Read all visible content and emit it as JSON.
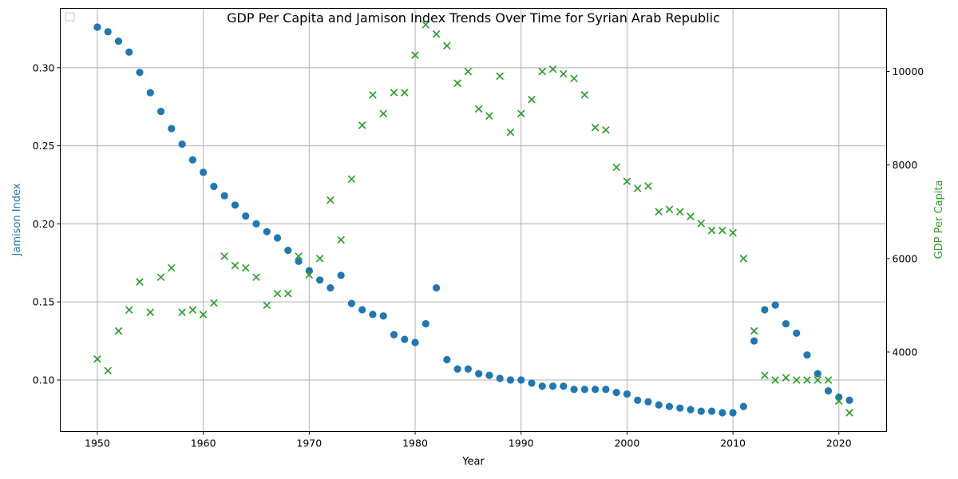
{
  "chart_data": {
    "type": "scatter",
    "title": "GDP Per Capita and Jamison Index Trends Over Time for Syrian Arab Republic",
    "xlabel": "Year",
    "ylabel_left": "Jamison Index",
    "ylabel_right": "GDP Per Capita",
    "xlim": [
      1946.5,
      2024.5
    ],
    "ylim_left": [
      0.067,
      0.338
    ],
    "ylim_right": [
      2300,
      11350
    ],
    "x_ticks": [
      1950,
      1960,
      1970,
      1980,
      1990,
      2000,
      2010,
      2020
    ],
    "y_ticks_left": [
      0.1,
      0.15,
      0.2,
      0.25,
      0.3
    ],
    "y_ticks_left_labels": [
      "0.10",
      "0.15",
      "0.20",
      "0.25",
      "0.30"
    ],
    "y_ticks_right": [
      4000,
      6000,
      8000,
      10000
    ],
    "y_ticks_right_labels": [
      "4000",
      "6000",
      "8000",
      "10000"
    ],
    "grid": true,
    "legend": "top-left",
    "colors": {
      "jamison": "#1f77b4",
      "gdp": "#2ca02c"
    },
    "series": [
      {
        "axis": "left",
        "marker": "circle",
        "x": [
          1950,
          1951,
          1952,
          1953,
          1954,
          1955,
          1956,
          1957,
          1958,
          1959,
          1960,
          1961,
          1962,
          1963,
          1964,
          1965,
          1966,
          1967,
          1968,
          1969,
          1970,
          1971,
          1972,
          1973,
          1974,
          1975,
          1976,
          1977,
          1978,
          1979,
          1980,
          1981,
          1982,
          1983,
          1984,
          1985,
          1986,
          1987,
          1988,
          1989,
          1990,
          1991,
          1992,
          1993,
          1994,
          1995,
          1996,
          1997,
          1998,
          1999,
          2000,
          2001,
          2002,
          2003,
          2004,
          2005,
          2006,
          2007,
          2008,
          2009,
          2010,
          2011,
          2012,
          2013,
          2014,
          2015,
          2016,
          2017,
          2018,
          2019,
          2020,
          2021
        ],
        "y": [
          0.326,
          0.323,
          0.317,
          0.31,
          0.297,
          0.284,
          0.272,
          0.261,
          0.251,
          0.241,
          0.233,
          0.224,
          0.218,
          0.212,
          0.205,
          0.2,
          0.195,
          0.191,
          0.183,
          0.176,
          0.17,
          0.164,
          0.159,
          0.167,
          0.149,
          0.145,
          0.142,
          0.141,
          0.129,
          0.126,
          0.124,
          0.136,
          0.159,
          0.113,
          0.107,
          0.107,
          0.104,
          0.103,
          0.101,
          0.1,
          0.1,
          0.098,
          0.096,
          0.096,
          0.096,
          0.094,
          0.094,
          0.094,
          0.094,
          0.092,
          0.091,
          0.087,
          0.086,
          0.084,
          0.083,
          0.082,
          0.081,
          0.08,
          0.08,
          0.079,
          0.079,
          0.083,
          0.125,
          0.145,
          0.148,
          0.136,
          0.13,
          0.116,
          0.104,
          0.093,
          0.089,
          0.087
        ]
      },
      {
        "axis": "right",
        "marker": "x",
        "x": [
          1950,
          1951,
          1952,
          1953,
          1954,
          1955,
          1956,
          1957,
          1958,
          1959,
          1960,
          1961,
          1962,
          1963,
          1964,
          1965,
          1966,
          1967,
          1968,
          1969,
          1970,
          1971,
          1972,
          1973,
          1974,
          1975,
          1976,
          1977,
          1978,
          1979,
          1980,
          1981,
          1982,
          1983,
          1984,
          1985,
          1986,
          1987,
          1988,
          1989,
          1990,
          1991,
          1992,
          1993,
          1994,
          1995,
          1996,
          1997,
          1998,
          1999,
          2000,
          2001,
          2002,
          2003,
          2004,
          2005,
          2006,
          2007,
          2008,
          2009,
          2010,
          2011,
          2012,
          2013,
          2014,
          2015,
          2016,
          2017,
          2018,
          2019,
          2020,
          2021
        ],
        "y": [
          3850,
          3600,
          4450,
          4900,
          5500,
          4850,
          5600,
          5800,
          4850,
          4900,
          4800,
          5050,
          6050,
          5850,
          5800,
          5600,
          5000,
          5250,
          5250,
          6050,
          5650,
          6000,
          7250,
          6400,
          7700,
          8850,
          9500,
          9100,
          9550,
          9550,
          10350,
          11000,
          10800,
          10550,
          9750,
          10000,
          9200,
          9050,
          9900,
          8700,
          9100,
          9400,
          10000,
          10050,
          9950,
          9850,
          9500,
          8800,
          8750,
          7950,
          7650,
          7500,
          7550,
          7000,
          7050,
          7000,
          6900,
          6750,
          6600,
          6600,
          6550,
          6000,
          4450,
          3500,
          3400,
          3450,
          3400,
          3400,
          3400,
          3400,
          2950,
          2700
        ]
      }
    ]
  }
}
